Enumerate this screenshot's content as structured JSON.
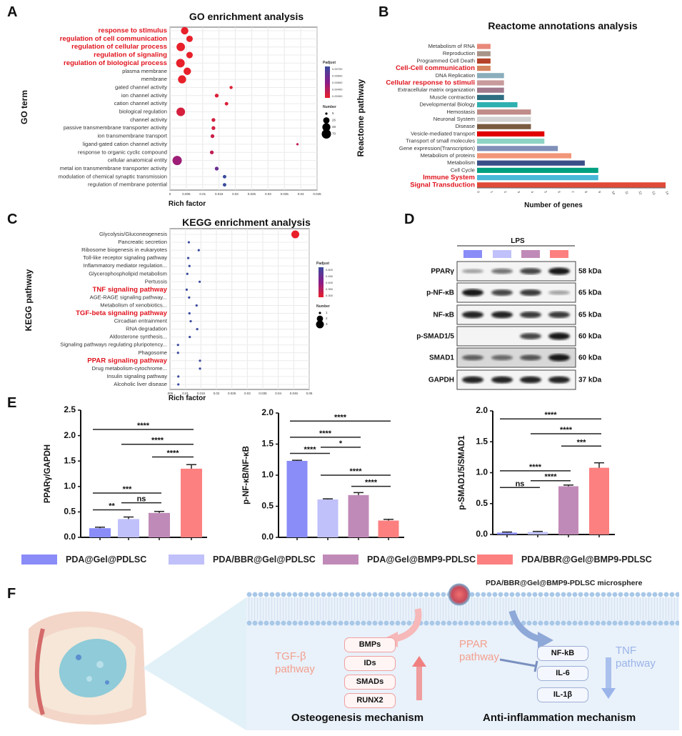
{
  "panel_labels": {
    "A": "A",
    "B": "B",
    "C": "C",
    "D": "D",
    "E": "E",
    "F": "F"
  },
  "colors": {
    "group1": "#8a8cf8",
    "group2": "#c0c0fa",
    "group3": "#c08ab8",
    "group4": "#fd8080",
    "highlight_text": "#e0141e",
    "padj_low": "#e8202a",
    "padj_mid": "#8a1c8a",
    "padj_high": "#3a4a9e"
  },
  "chart_data": [
    {
      "id": "A",
      "type": "scatter",
      "title": "GO enrichment analysis",
      "xlabel": "Rich factor",
      "ylabel": "GO term",
      "xlim": [
        0,
        0.045
      ],
      "xticks": [
        "0",
        "0.005",
        "0.01",
        "0.015",
        "0.02",
        "0.025",
        "0.03",
        "0.035",
        "0.04",
        "0.045"
      ],
      "grid": true,
      "legend": {
        "placement": "right",
        "color_title": "Padjust",
        "color_ticks": [
          "0.00700",
          "0.00600",
          "0.00500",
          "0.00400",
          "0.00300"
        ],
        "color_range": [
          0.003,
          0.007
        ],
        "size_title": "Number",
        "size_ticks": [
          "5",
          "26",
          "48",
          "70"
        ],
        "size_range": [
          5,
          70
        ]
      },
      "points": [
        {
          "term": "response to stimulus",
          "x": 0.0045,
          "padjust": 0.003,
          "number": 40,
          "highlight": true
        },
        {
          "term": "regulation of cell communication",
          "x": 0.006,
          "padjust": 0.003,
          "number": 28,
          "highlight": true
        },
        {
          "term": "regulation of cellular process",
          "x": 0.0033,
          "padjust": 0.003,
          "number": 55,
          "highlight": true
        },
        {
          "term": "regulation of signaling",
          "x": 0.006,
          "padjust": 0.003,
          "number": 28,
          "highlight": true
        },
        {
          "term": "regulation of biological process",
          "x": 0.0032,
          "padjust": 0.003,
          "number": 58,
          "highlight": true
        },
        {
          "term": "plasma membrane",
          "x": 0.0053,
          "padjust": 0.003,
          "number": 40,
          "highlight": false
        },
        {
          "term": "membrane",
          "x": 0.0037,
          "padjust": 0.003,
          "number": 50,
          "highlight": false
        },
        {
          "term": "gated channel activity",
          "x": 0.0187,
          "padjust": 0.0032,
          "number": 6,
          "highlight": false
        },
        {
          "term": "ion channel activity",
          "x": 0.0143,
          "padjust": 0.0033,
          "number": 8,
          "highlight": false
        },
        {
          "term": "cation channel activity",
          "x": 0.0173,
          "padjust": 0.0033,
          "number": 7,
          "highlight": false
        },
        {
          "term": "biological regulation",
          "x": 0.0033,
          "padjust": 0.0034,
          "number": 58,
          "highlight": false
        },
        {
          "term": "channel activity",
          "x": 0.0133,
          "padjust": 0.0035,
          "number": 8,
          "highlight": false
        },
        {
          "term": "passive transmembrane transporter activity",
          "x": 0.0133,
          "padjust": 0.0035,
          "number": 8,
          "highlight": false
        },
        {
          "term": "ion transmembrane transport",
          "x": 0.013,
          "padjust": 0.0036,
          "number": 8,
          "highlight": false
        },
        {
          "term": "ligand-gated cation channel activity",
          "x": 0.039,
          "padjust": 0.0038,
          "number": 5,
          "highlight": false
        },
        {
          "term": "response to organic cyclic compound",
          "x": 0.0128,
          "padjust": 0.0039,
          "number": 8,
          "highlight": false
        },
        {
          "term": "cellular anatomical entity",
          "x": 0.0022,
          "padjust": 0.0046,
          "number": 70,
          "highlight": false
        },
        {
          "term": "metal ion transmembrane transporter activity",
          "x": 0.0143,
          "padjust": 0.0058,
          "number": 8,
          "highlight": false
        },
        {
          "term": "modulation of chemical synaptic transmission",
          "x": 0.0167,
          "padjust": 0.007,
          "number": 7,
          "highlight": false
        },
        {
          "term": "regulation of membrane potential",
          "x": 0.0167,
          "padjust": 0.007,
          "number": 7,
          "highlight": false
        }
      ]
    },
    {
      "id": "B",
      "type": "bar",
      "orientation": "horizontal",
      "title": "Reactome annotations analysis",
      "xlabel": "Number of genes",
      "ylabel": "Reactome pathway",
      "xlim": [
        0,
        14
      ],
      "xticks": [
        "0",
        "1",
        "2",
        "3",
        "4",
        "5",
        "6",
        "7",
        "8",
        "9",
        "10",
        "11",
        "12",
        "13",
        "14"
      ],
      "bars": [
        {
          "label": "Metabolism of RNA",
          "value": 1,
          "color": "#e8897a",
          "highlight": false
        },
        {
          "label": "Reproduction",
          "value": 1,
          "color": "#a89488",
          "highlight": false
        },
        {
          "label": "Programmed Cell Death",
          "value": 1,
          "color": "#b5432a",
          "highlight": false
        },
        {
          "label": "Cell-Cell communication",
          "value": 1,
          "color": "#d4845e",
          "highlight": true
        },
        {
          "label": "DNA Replication",
          "value": 2,
          "color": "#8aaebb",
          "highlight": false
        },
        {
          "label": "Cellular response to stimuli",
          "value": 2,
          "color": "#c99a9c",
          "highlight": true
        },
        {
          "label": "Extracellular matrix organization",
          "value": 2,
          "color": "#a07a8c",
          "highlight": false
        },
        {
          "label": "Muscle contraction",
          "value": 2,
          "color": "#2e6e80",
          "highlight": false
        },
        {
          "label": "Developmental Biology",
          "value": 3,
          "color": "#2fb0b0",
          "highlight": false
        },
        {
          "label": "Hemostasis",
          "value": 4,
          "color": "#c08c88",
          "highlight": false
        },
        {
          "label": "Neuronal System",
          "value": 4,
          "color": "#d2d2d2",
          "highlight": false
        },
        {
          "label": "Disease",
          "value": 4,
          "color": "#7a5a40",
          "highlight": false
        },
        {
          "label": "Vesicle-mediated transport",
          "value": 5,
          "color": "#e00000",
          "highlight": false
        },
        {
          "label": "Transport of small molecules",
          "value": 5,
          "color": "#8dd4c4",
          "highlight": false
        },
        {
          "label": "Gene expression(Transcription)",
          "value": 6,
          "color": "#8090b8",
          "highlight": false
        },
        {
          "label": "Metabolism of proteins",
          "value": 7,
          "color": "#f2967a",
          "highlight": false
        },
        {
          "label": "Metabolism",
          "value": 8,
          "color": "#3a4f88",
          "highlight": false
        },
        {
          "label": "Cell Cycle",
          "value": 9,
          "color": "#00a080",
          "highlight": false
        },
        {
          "label": "Immune System",
          "value": 9,
          "color": "#48b8d8",
          "highlight": true
        },
        {
          "label": "Signal Transduction",
          "value": 14,
          "color": "#e04a38",
          "highlight": true
        }
      ]
    },
    {
      "id": "C",
      "type": "scatter",
      "title": "KEGG enrichment analysis",
      "xlabel": "Rich factor",
      "ylabel": "KEGG pathway",
      "xlim": [
        0.005,
        0.05
      ],
      "xticks": [
        ".005",
        "0.01",
        "0.015",
        "0.02",
        "0.025",
        "0.03",
        "0.035",
        "0.04",
        "0.045",
        "0.05"
      ],
      "grid": true,
      "legend": {
        "placement": "right",
        "color_title": "Padjust",
        "color_ticks": [
          "0.500",
          "0.450",
          "0.400",
          "0.350",
          "0.300"
        ],
        "color_range": [
          0.3,
          0.5
        ],
        "size_title": "Number",
        "size_ticks": [
          "1",
          "2",
          "3"
        ],
        "size_range": [
          1,
          3
        ]
      },
      "points": [
        {
          "term": "Glycolysis/Gluconeogenesis",
          "x": 0.0455,
          "padjust": 0.3,
          "number": 3,
          "highlight": false
        },
        {
          "term": "Pancreatic secretion",
          "x": 0.0111,
          "padjust": 0.5,
          "number": 1,
          "highlight": false
        },
        {
          "term": "Ribosome biogenesis in eukaryotes",
          "x": 0.0143,
          "padjust": 0.5,
          "number": 1,
          "highlight": false
        },
        {
          "term": "Toll-like receptor signaling pathway",
          "x": 0.0109,
          "padjust": 0.5,
          "number": 1,
          "highlight": false
        },
        {
          "term": "Inflammatory mediator regulation...",
          "x": 0.0113,
          "padjust": 0.5,
          "number": 1,
          "highlight": false
        },
        {
          "term": "Glycerophospholipid metabolism",
          "x": 0.0106,
          "padjust": 0.5,
          "number": 1,
          "highlight": false
        },
        {
          "term": "Pertussis",
          "x": 0.0146,
          "padjust": 0.5,
          "number": 1,
          "highlight": false
        },
        {
          "term": "TNF signaling pathway",
          "x": 0.0104,
          "padjust": 0.5,
          "number": 1,
          "highlight": true
        },
        {
          "term": "AGE-RAGE signaling pathway...",
          "x": 0.0112,
          "padjust": 0.5,
          "number": 1,
          "highlight": false
        },
        {
          "term": "Metabolism of xenobiotics...",
          "x": 0.0136,
          "padjust": 0.5,
          "number": 1,
          "highlight": false
        },
        {
          "term": "TGF-beta signaling pathway",
          "x": 0.0113,
          "padjust": 0.5,
          "number": 1,
          "highlight": true
        },
        {
          "term": "Circadian entrainment",
          "x": 0.0117,
          "padjust": 0.5,
          "number": 1,
          "highlight": false
        },
        {
          "term": "RNA degradation",
          "x": 0.0138,
          "padjust": 0.5,
          "number": 1,
          "highlight": false
        },
        {
          "term": "Aldosterone synthesis...",
          "x": 0.0114,
          "padjust": 0.5,
          "number": 1,
          "highlight": false
        },
        {
          "term": "Signaling pathways regulating pluripotency...",
          "x": 0.0076,
          "padjust": 0.5,
          "number": 1,
          "highlight": false
        },
        {
          "term": "Phagosome",
          "x": 0.0076,
          "padjust": 0.5,
          "number": 1,
          "highlight": false
        },
        {
          "term": "PPAR signaling pathway",
          "x": 0.0147,
          "padjust": 0.5,
          "number": 1,
          "highlight": true
        },
        {
          "term": "Drug metabolism-cytochrome...",
          "x": 0.0147,
          "padjust": 0.5,
          "number": 1,
          "highlight": false
        },
        {
          "term": "Insulin signaling pathway",
          "x": 0.0077,
          "padjust": 0.5,
          "number": 1,
          "highlight": false
        },
        {
          "term": "Alcoholic liver disease",
          "x": 0.0077,
          "padjust": 0.5,
          "number": 1,
          "highlight": false
        }
      ]
    },
    {
      "id": "E1",
      "type": "bar",
      "ylabel": "PPARγ/GAPDH",
      "ylim": [
        0,
        2.5
      ],
      "yticks": [
        "0.0",
        "0.5",
        "1.0",
        "1.5",
        "2.0",
        "2.5"
      ],
      "categories": [
        "PDA@Gel@PDLSC",
        "PDA/BBR@Gel@PDLSC",
        "PDA@Gel@BMP9-PDLSC",
        "PDA/BBR@Gel@BMP9-PDLSC"
      ],
      "values": [
        0.18,
        0.36,
        0.48,
        1.35
      ],
      "errors": [
        0.02,
        0.04,
        0.03,
        0.08
      ],
      "significance": [
        {
          "from": 0,
          "to": 3,
          "label": "****",
          "y": 2.12
        },
        {
          "from": 1,
          "to": 3,
          "label": "****",
          "y": 1.83
        },
        {
          "from": 2,
          "to": 3,
          "label": "****",
          "y": 1.58
        },
        {
          "from": 0,
          "to": 2,
          "label": "***",
          "y": 0.87
        },
        {
          "from": 1,
          "to": 2,
          "label": "ns",
          "y": 0.68
        },
        {
          "from": 0,
          "to": 1,
          "label": "**",
          "y": 0.54
        }
      ]
    },
    {
      "id": "E2",
      "type": "bar",
      "ylabel": "p-NF-κB/NF-κB",
      "ylim": [
        0,
        2.0
      ],
      "yticks": [
        "0.0",
        "0.5",
        "1.0",
        "1.5",
        "2.0"
      ],
      "categories": [
        "PDA@Gel@PDLSC",
        "PDA/BBR@Gel@PDLSC",
        "PDA@Gel@BMP9-PDLSC",
        "PDA/BBR@Gel@BMP9-PDLSC"
      ],
      "values": [
        1.23,
        0.61,
        0.68,
        0.27
      ],
      "errors": [
        0.01,
        0.01,
        0.04,
        0.02
      ],
      "significance": [
        {
          "from": 0,
          "to": 3,
          "label": "****",
          "y": 1.87
        },
        {
          "from": 0,
          "to": 2,
          "label": "****",
          "y": 1.61
        },
        {
          "from": 1,
          "to": 2,
          "label": "*",
          "y": 1.45
        },
        {
          "from": 0,
          "to": 1,
          "label": "****",
          "y": 1.35
        },
        {
          "from": 1,
          "to": 3,
          "label": "****",
          "y": 1.0
        },
        {
          "from": 2,
          "to": 3,
          "label": "****",
          "y": 0.82
        }
      ]
    },
    {
      "id": "E3",
      "type": "bar",
      "ylabel": "p-SMAD1/5/SMAD1",
      "ylim": [
        0,
        2.0
      ],
      "yticks": [
        "0.0",
        "0.5",
        "1.0",
        "1.5",
        "2.0"
      ],
      "categories": [
        "PDA@Gel@PDLSC",
        "PDA/BBR@Gel@PDLSC",
        "PDA@Gel@BMP9-PDLSC",
        "PDA/BBR@Gel@BMP9-PDLSC"
      ],
      "values": [
        0.03,
        0.04,
        0.78,
        1.08
      ],
      "errors": [
        0.01,
        0.01,
        0.02,
        0.08
      ],
      "significance": [
        {
          "from": 0,
          "to": 3,
          "label": "****",
          "y": 1.87
        },
        {
          "from": 1,
          "to": 3,
          "label": "****",
          "y": 1.63
        },
        {
          "from": 2,
          "to": 3,
          "label": "***",
          "y": 1.43
        },
        {
          "from": 0,
          "to": 2,
          "label": "****",
          "y": 1.03
        },
        {
          "from": 1,
          "to": 2,
          "label": "****",
          "y": 0.87
        },
        {
          "from": 0,
          "to": 1,
          "label": "ns",
          "y": 0.76
        }
      ]
    }
  ],
  "western_blot": {
    "treatment_label": "LPS",
    "bands": [
      {
        "protein": "PPARγ",
        "kda": "58 kDa",
        "intensity": [
          0.35,
          0.55,
          0.75,
          0.95
        ]
      },
      {
        "protein": "p-NF-κB",
        "kda": "65 kDa",
        "intensity": [
          0.95,
          0.75,
          0.8,
          0.35
        ]
      },
      {
        "protein": "NF-κB",
        "kda": "65 kDa",
        "intensity": [
          0.9,
          0.9,
          0.8,
          0.8
        ]
      },
      {
        "protein": "p-SMAD1/5",
        "kda": "60 kDa",
        "intensity": [
          0.0,
          0.0,
          0.75,
          0.95
        ]
      },
      {
        "protein": "SMAD1",
        "kda": "60 kDa",
        "intensity": [
          0.6,
          0.55,
          0.65,
          0.95
        ]
      },
      {
        "protein": "GAPDH",
        "kda": "37 kDa",
        "intensity": [
          0.9,
          0.9,
          0.9,
          0.9
        ]
      }
    ]
  },
  "legend": [
    "PDA@Gel@PDLSC",
    "PDA/BBR@Gel@PDLSC",
    "PDA@Gel@BMP9-PDLSC",
    "PDA/BBR@Gel@BMP9-PDLSC"
  ],
  "schematic": {
    "microsphere_label": "PDA/BBR@Gel@BMP9-PDLSC microsphere",
    "osteo_boxes": [
      "BMPs",
      "IDs",
      "SMADs",
      "RUNX2"
    ],
    "inflam_boxes": [
      "NF-kB",
      "IL-6",
      "IL-1β"
    ],
    "tgf_line1": "TGF-β",
    "tgf_line2": "pathway",
    "ppar_line1": "PPAR",
    "ppar_line2": "pathway",
    "tnf_line1": "TNF",
    "tnf_line2": "pathway",
    "osteo_title": "Osteogenesis mechanism",
    "inflam_title": "Anti-inflammation mechanism"
  }
}
